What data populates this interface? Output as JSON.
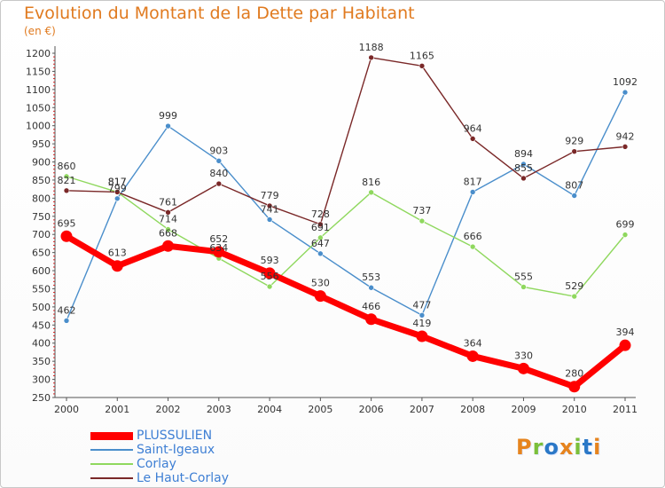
{
  "header": {
    "title": "Evolution du Montant de la Dette par Habitant",
    "unit": "(en €)"
  },
  "logo": {
    "text": "Proxiti",
    "colors": [
      "#e6841e",
      "#7bbf3a",
      "#2b78c7",
      "#e6841e",
      "#7bbf3a",
      "#2b78c7",
      "#e6841e"
    ]
  },
  "chart_data": {
    "type": "line",
    "x": [
      "2000",
      "2001",
      "2002",
      "2003",
      "2004",
      "2005",
      "2006",
      "2007",
      "2008",
      "2009",
      "2010",
      "2011"
    ],
    "ylim": [
      250,
      1200
    ],
    "yticks": [
      250,
      300,
      350,
      400,
      450,
      500,
      550,
      600,
      650,
      700,
      750,
      800,
      850,
      900,
      950,
      1000,
      1050,
      1100,
      1150,
      1200
    ],
    "grid": false,
    "legend": "bottom-left",
    "series": [
      {
        "name": "PLUSSULIEN",
        "color": "#ff0000",
        "values": [
          695,
          613,
          668,
          652,
          593,
          530,
          466,
          419,
          364,
          330,
          280,
          394
        ]
      },
      {
        "name": "Saint-Igeaux",
        "color": "#4a8ecb",
        "values": [
          462,
          799,
          999,
          903,
          741,
          647,
          553,
          477,
          817,
          894,
          807,
          1092
        ]
      },
      {
        "name": "Corlay",
        "color": "#8fd85e",
        "values": [
          860,
          817,
          714,
          634,
          556,
          691,
          816,
          737,
          666,
          555,
          529,
          699
        ]
      },
      {
        "name": "Le Haut-Corlay",
        "color": "#7a2828",
        "values": [
          821,
          817,
          761,
          840,
          779,
          728,
          1188,
          1165,
          964,
          855,
          929,
          942
        ]
      }
    ]
  }
}
